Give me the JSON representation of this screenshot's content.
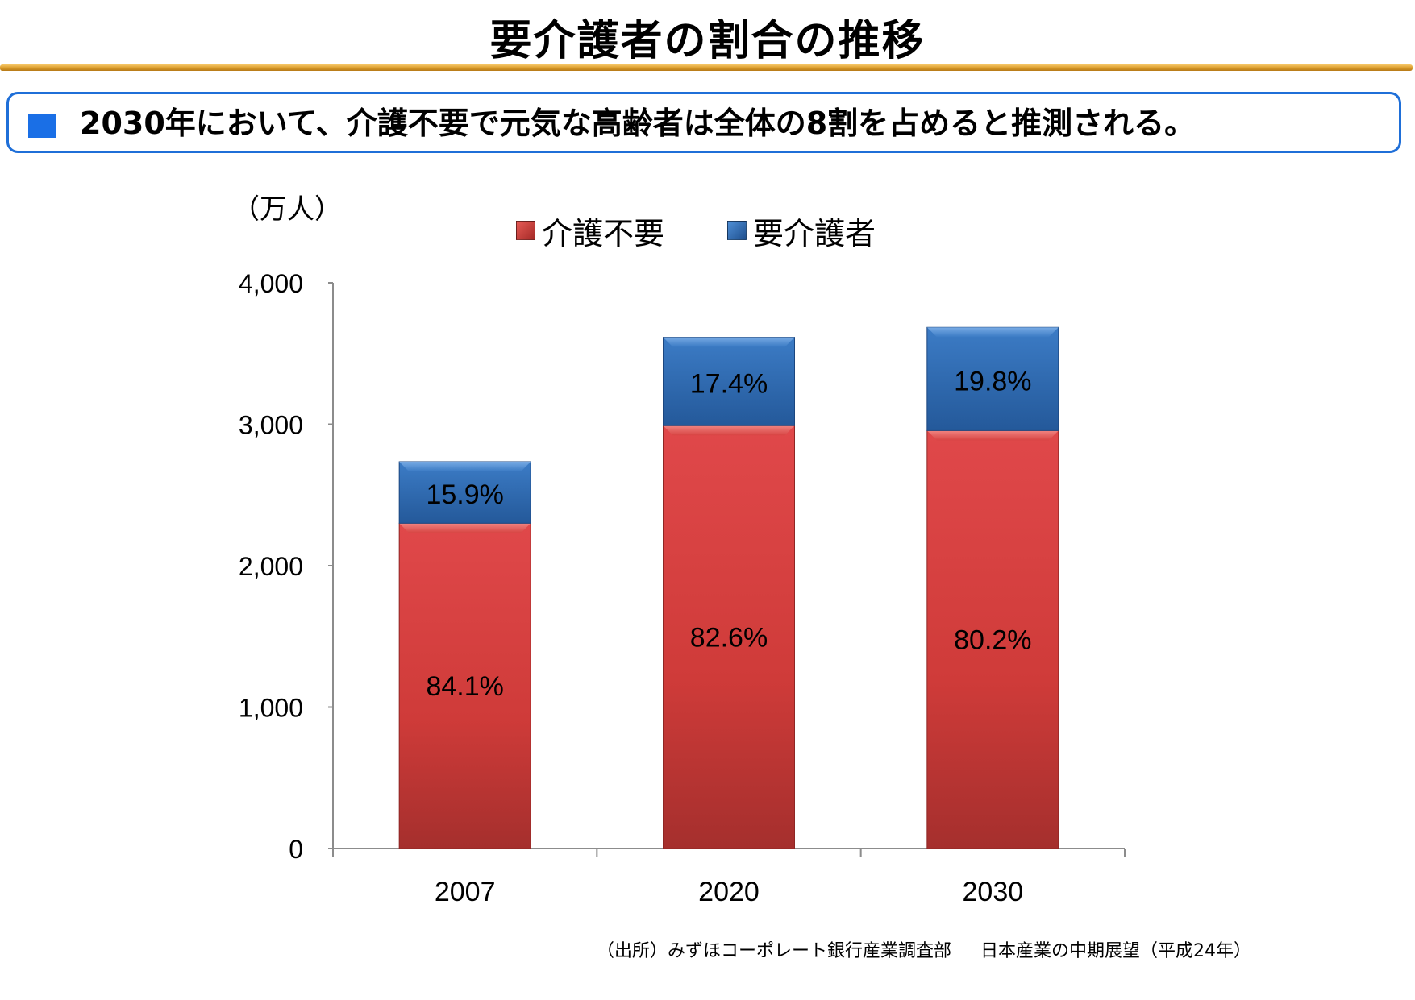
{
  "page": {
    "title": "要介護者の割合の推移",
    "banner_text": "2030年において、介護不要で元気な高齢者は全体の8割を占めると推測される。",
    "source": [
      "（出所）みずほコーポレート銀行産業調査部",
      "日本産業の中期展望（平成24年）"
    ]
  },
  "colors": {
    "accent_blue": "#1a6fe6",
    "title_rule": "#d99a28",
    "series_red": "#d63c3a",
    "series_blue": "#2e6db4"
  },
  "chart_data": {
    "type": "bar",
    "stacked": true,
    "unit_label": "（万人）",
    "categories": [
      "2007",
      "2020",
      "2030"
    ],
    "series": [
      {
        "name": "介護不要",
        "color": "#d63c3a",
        "values": [
          2300,
          2990,
          2955
        ],
        "labels": [
          "84.1%",
          "82.6%",
          "80.2%"
        ]
      },
      {
        "name": "要介護者",
        "color": "#2e6db4",
        "values": [
          435,
          625,
          730
        ],
        "labels": [
          "15.9%",
          "17.4%",
          "19.8%"
        ]
      }
    ],
    "ylim": [
      0,
      4000
    ],
    "yticks": [
      0,
      1000,
      2000,
      3000,
      4000
    ],
    "ytick_labels": [
      "0",
      "1,000",
      "2,000",
      "3,000",
      "4,000"
    ],
    "grid": false,
    "legend_position": "top"
  }
}
